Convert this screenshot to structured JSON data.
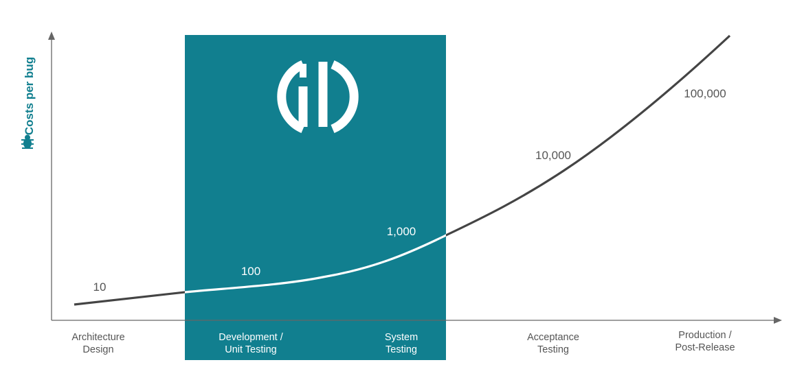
{
  "chart_data": {
    "type": "line",
    "title": "",
    "xlabel": "",
    "ylabel": "Costs per bug",
    "y_scale": "log",
    "grid": false,
    "legend": "none",
    "categories": [
      "Architecture Design",
      "Development / Unit Testing",
      "System Testing",
      "Acceptance Testing",
      "Production / Post-Release"
    ],
    "category_lines": [
      [
        "Architecture",
        "Design"
      ],
      [
        "Development /",
        "Unit Testing"
      ],
      [
        "System",
        "Testing"
      ],
      [
        "Acceptance",
        "Testing"
      ],
      [
        "Production /",
        "Post-Release"
      ]
    ],
    "values": [
      10,
      100,
      1000,
      10000,
      100000
    ],
    "data_labels": [
      "10",
      "100",
      "1,000",
      "10,000",
      "100,000"
    ],
    "highlight": {
      "from_category": "Development / Unit Testing",
      "to_category": "System Testing",
      "logo_icon": "circular-split-logo-icon"
    },
    "colors": {
      "highlight": "#117f8f",
      "line": "#444444",
      "line_on_highlight": "#ffffff",
      "axis": "#666666",
      "label": "#555555",
      "ylabel": "#117f8f",
      "label_on_highlight": "#ffffff"
    },
    "ylabel_icon": "bug-icon"
  }
}
